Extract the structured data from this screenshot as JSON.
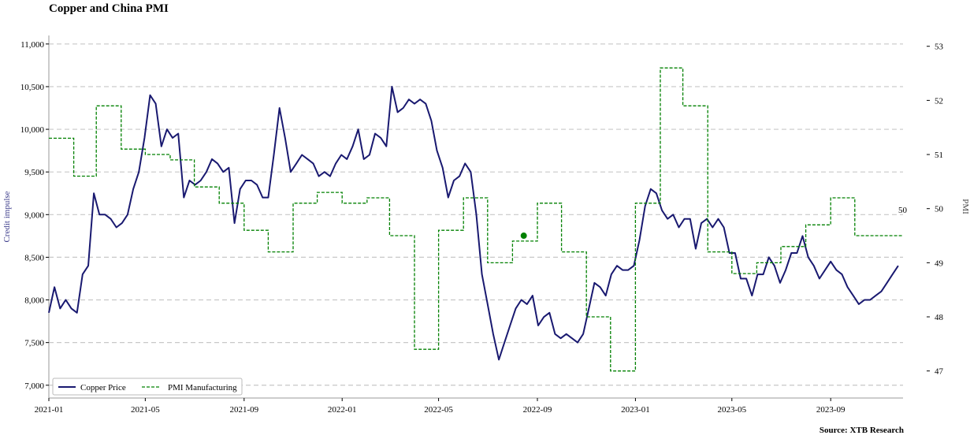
{
  "title": "Copper and China PMI",
  "source": "Source: XTB Research",
  "chart_data": {
    "type": "line",
    "title": "Copper and China PMI",
    "ylabel_left": "Credit impulse",
    "ylabel_right": "PMI",
    "ylim_left": [
      6850,
      11100
    ],
    "ylim_right": [
      46.5,
      53.2
    ],
    "left_ticks": [
      "7,000",
      "7,500",
      "8,000",
      "8,500",
      "9,000",
      "9,500",
      "10,000",
      "10,500",
      "11,000"
    ],
    "right_ticks": [
      "47",
      "48",
      "49",
      "50",
      "51",
      "52",
      "53"
    ],
    "x_ticks": [
      "2021-01",
      "2021-05",
      "2021-09",
      "2022-01",
      "2022-05",
      "2022-09",
      "2023-01",
      "2023-05",
      "2023-09"
    ],
    "xlim": [
      "2021-01-01",
      "2023-11-30"
    ],
    "grid": "horizontal dashed",
    "legend_position": "bottom-left",
    "annotation": {
      "text": "50",
      "y": 49.5
    },
    "highlight_point": {
      "x": "2022-08-15",
      "y": 49.5
    },
    "series": [
      {
        "name": "Copper Price",
        "axis": "left",
        "color": "#191970",
        "style": "solid",
        "points": [
          [
            "2021-01-01",
            7850
          ],
          [
            "2021-01-08",
            8150
          ],
          [
            "2021-01-15",
            7900
          ],
          [
            "2021-01-22",
            8000
          ],
          [
            "2021-01-29",
            7900
          ],
          [
            "2021-02-05",
            7850
          ],
          [
            "2021-02-12",
            8300
          ],
          [
            "2021-02-19",
            8400
          ],
          [
            "2021-02-26",
            9250
          ],
          [
            "2021-03-05",
            9000
          ],
          [
            "2021-03-12",
            9000
          ],
          [
            "2021-03-19",
            8950
          ],
          [
            "2021-03-26",
            8850
          ],
          [
            "2021-04-02",
            8900
          ],
          [
            "2021-04-09",
            9000
          ],
          [
            "2021-04-16",
            9300
          ],
          [
            "2021-04-23",
            9500
          ],
          [
            "2021-04-30",
            9900
          ],
          [
            "2021-05-07",
            10400
          ],
          [
            "2021-05-14",
            10300
          ],
          [
            "2021-05-21",
            9800
          ],
          [
            "2021-05-28",
            10000
          ],
          [
            "2021-06-04",
            9900
          ],
          [
            "2021-06-11",
            9950
          ],
          [
            "2021-06-18",
            9200
          ],
          [
            "2021-06-25",
            9400
          ],
          [
            "2021-07-02",
            9350
          ],
          [
            "2021-07-09",
            9400
          ],
          [
            "2021-07-16",
            9500
          ],
          [
            "2021-07-23",
            9650
          ],
          [
            "2021-07-30",
            9600
          ],
          [
            "2021-08-06",
            9500
          ],
          [
            "2021-08-13",
            9550
          ],
          [
            "2021-08-20",
            8900
          ],
          [
            "2021-08-27",
            9300
          ],
          [
            "2021-09-03",
            9400
          ],
          [
            "2021-09-10",
            9400
          ],
          [
            "2021-09-17",
            9350
          ],
          [
            "2021-09-24",
            9200
          ],
          [
            "2021-10-01",
            9200
          ],
          [
            "2021-10-08",
            9700
          ],
          [
            "2021-10-15",
            10250
          ],
          [
            "2021-10-22",
            9900
          ],
          [
            "2021-10-29",
            9500
          ],
          [
            "2021-11-05",
            9600
          ],
          [
            "2021-11-12",
            9700
          ],
          [
            "2021-11-19",
            9650
          ],
          [
            "2021-11-26",
            9600
          ],
          [
            "2021-12-03",
            9450
          ],
          [
            "2021-12-10",
            9500
          ],
          [
            "2021-12-17",
            9450
          ],
          [
            "2021-12-24",
            9600
          ],
          [
            "2021-12-31",
            9700
          ],
          [
            "2022-01-07",
            9650
          ],
          [
            "2022-01-14",
            9800
          ],
          [
            "2022-01-21",
            10000
          ],
          [
            "2022-01-28",
            9650
          ],
          [
            "2022-02-04",
            9700
          ],
          [
            "2022-02-11",
            9950
          ],
          [
            "2022-02-18",
            9900
          ],
          [
            "2022-02-25",
            9800
          ],
          [
            "2022-03-04",
            10500
          ],
          [
            "2022-03-11",
            10200
          ],
          [
            "2022-03-18",
            10250
          ],
          [
            "2022-03-25",
            10350
          ],
          [
            "2022-04-01",
            10300
          ],
          [
            "2022-04-08",
            10350
          ],
          [
            "2022-04-15",
            10300
          ],
          [
            "2022-04-22",
            10100
          ],
          [
            "2022-04-29",
            9750
          ],
          [
            "2022-05-06",
            9550
          ],
          [
            "2022-05-13",
            9200
          ],
          [
            "2022-05-20",
            9400
          ],
          [
            "2022-05-27",
            9450
          ],
          [
            "2022-06-03",
            9600
          ],
          [
            "2022-06-10",
            9500
          ],
          [
            "2022-06-17",
            9000
          ],
          [
            "2022-06-24",
            8300
          ],
          [
            "2022-07-01",
            7950
          ],
          [
            "2022-07-08",
            7600
          ],
          [
            "2022-07-15",
            7300
          ],
          [
            "2022-07-22",
            7500
          ],
          [
            "2022-07-29",
            7700
          ],
          [
            "2022-08-05",
            7900
          ],
          [
            "2022-08-12",
            8000
          ],
          [
            "2022-08-19",
            7950
          ],
          [
            "2022-08-26",
            8050
          ],
          [
            "2022-09-02",
            7700
          ],
          [
            "2022-09-09",
            7800
          ],
          [
            "2022-09-16",
            7850
          ],
          [
            "2022-09-23",
            7600
          ],
          [
            "2022-09-30",
            7550
          ],
          [
            "2022-10-07",
            7600
          ],
          [
            "2022-10-14",
            7550
          ],
          [
            "2022-10-21",
            7500
          ],
          [
            "2022-10-28",
            7600
          ],
          [
            "2022-11-04",
            7900
          ],
          [
            "2022-11-11",
            8200
          ],
          [
            "2022-11-18",
            8150
          ],
          [
            "2022-11-25",
            8050
          ],
          [
            "2022-12-02",
            8300
          ],
          [
            "2022-12-09",
            8400
          ],
          [
            "2022-12-16",
            8350
          ],
          [
            "2022-12-23",
            8350
          ],
          [
            "2022-12-30",
            8400
          ],
          [
            "2023-01-06",
            8700
          ],
          [
            "2023-01-13",
            9100
          ],
          [
            "2023-01-20",
            9300
          ],
          [
            "2023-01-27",
            9250
          ],
          [
            "2023-02-03",
            9050
          ],
          [
            "2023-02-10",
            8950
          ],
          [
            "2023-02-17",
            9000
          ],
          [
            "2023-02-24",
            8850
          ],
          [
            "2023-03-03",
            8950
          ],
          [
            "2023-03-10",
            8950
          ],
          [
            "2023-03-17",
            8600
          ],
          [
            "2023-03-24",
            8900
          ],
          [
            "2023-03-31",
            8950
          ],
          [
            "2023-04-07",
            8850
          ],
          [
            "2023-04-14",
            8950
          ],
          [
            "2023-04-21",
            8850
          ],
          [
            "2023-04-28",
            8550
          ],
          [
            "2023-05-05",
            8550
          ],
          [
            "2023-05-12",
            8250
          ],
          [
            "2023-05-19",
            8250
          ],
          [
            "2023-05-26",
            8050
          ],
          [
            "2023-06-02",
            8300
          ],
          [
            "2023-06-09",
            8300
          ],
          [
            "2023-06-16",
            8500
          ],
          [
            "2023-06-23",
            8400
          ],
          [
            "2023-06-30",
            8200
          ],
          [
            "2023-07-07",
            8350
          ],
          [
            "2023-07-14",
            8550
          ],
          [
            "2023-07-21",
            8550
          ],
          [
            "2023-07-28",
            8750
          ],
          [
            "2023-08-04",
            8500
          ],
          [
            "2023-08-11",
            8400
          ],
          [
            "2023-08-18",
            8250
          ],
          [
            "2023-08-25",
            8350
          ],
          [
            "2023-09-01",
            8450
          ],
          [
            "2023-09-08",
            8350
          ],
          [
            "2023-09-15",
            8300
          ],
          [
            "2023-09-22",
            8150
          ],
          [
            "2023-09-29",
            8050
          ],
          [
            "2023-10-06",
            7950
          ],
          [
            "2023-10-13",
            8000
          ],
          [
            "2023-10-20",
            8000
          ],
          [
            "2023-10-27",
            8050
          ],
          [
            "2023-11-03",
            8100
          ],
          [
            "2023-11-10",
            8200
          ],
          [
            "2023-11-17",
            8300
          ],
          [
            "2023-11-24",
            8400
          ]
        ]
      },
      {
        "name": "PMI Manufacturing",
        "axis": "right",
        "color": "#008000",
        "style": "dashed-step",
        "points": [
          [
            "2021-01-01",
            51.3
          ],
          [
            "2021-02-01",
            50.6
          ],
          [
            "2021-03-01",
            51.9
          ],
          [
            "2021-04-01",
            51.1
          ],
          [
            "2021-05-01",
            51.0
          ],
          [
            "2021-06-01",
            50.9
          ],
          [
            "2021-07-01",
            50.4
          ],
          [
            "2021-08-01",
            50.1
          ],
          [
            "2021-09-01",
            49.6
          ],
          [
            "2021-10-01",
            49.2
          ],
          [
            "2021-11-01",
            50.1
          ],
          [
            "2021-12-01",
            50.3
          ],
          [
            "2022-01-01",
            50.1
          ],
          [
            "2022-02-01",
            50.2
          ],
          [
            "2022-03-01",
            49.5
          ],
          [
            "2022-04-01",
            47.4
          ],
          [
            "2022-05-01",
            49.6
          ],
          [
            "2022-06-01",
            50.2
          ],
          [
            "2022-07-01",
            49.0
          ],
          [
            "2022-08-01",
            49.4
          ],
          [
            "2022-09-01",
            50.1
          ],
          [
            "2022-10-01",
            49.2
          ],
          [
            "2022-11-01",
            48.0
          ],
          [
            "2022-12-01",
            47.0
          ],
          [
            "2023-01-01",
            50.1
          ],
          [
            "2023-02-01",
            52.6
          ],
          [
            "2023-03-01",
            51.9
          ],
          [
            "2023-04-01",
            49.2
          ],
          [
            "2023-05-01",
            48.8
          ],
          [
            "2023-06-01",
            49.0
          ],
          [
            "2023-07-01",
            49.3
          ],
          [
            "2023-08-01",
            49.7
          ],
          [
            "2023-09-01",
            50.2
          ],
          [
            "2023-10-01",
            49.5
          ],
          [
            "2023-11-01",
            49.5
          ]
        ]
      }
    ]
  }
}
